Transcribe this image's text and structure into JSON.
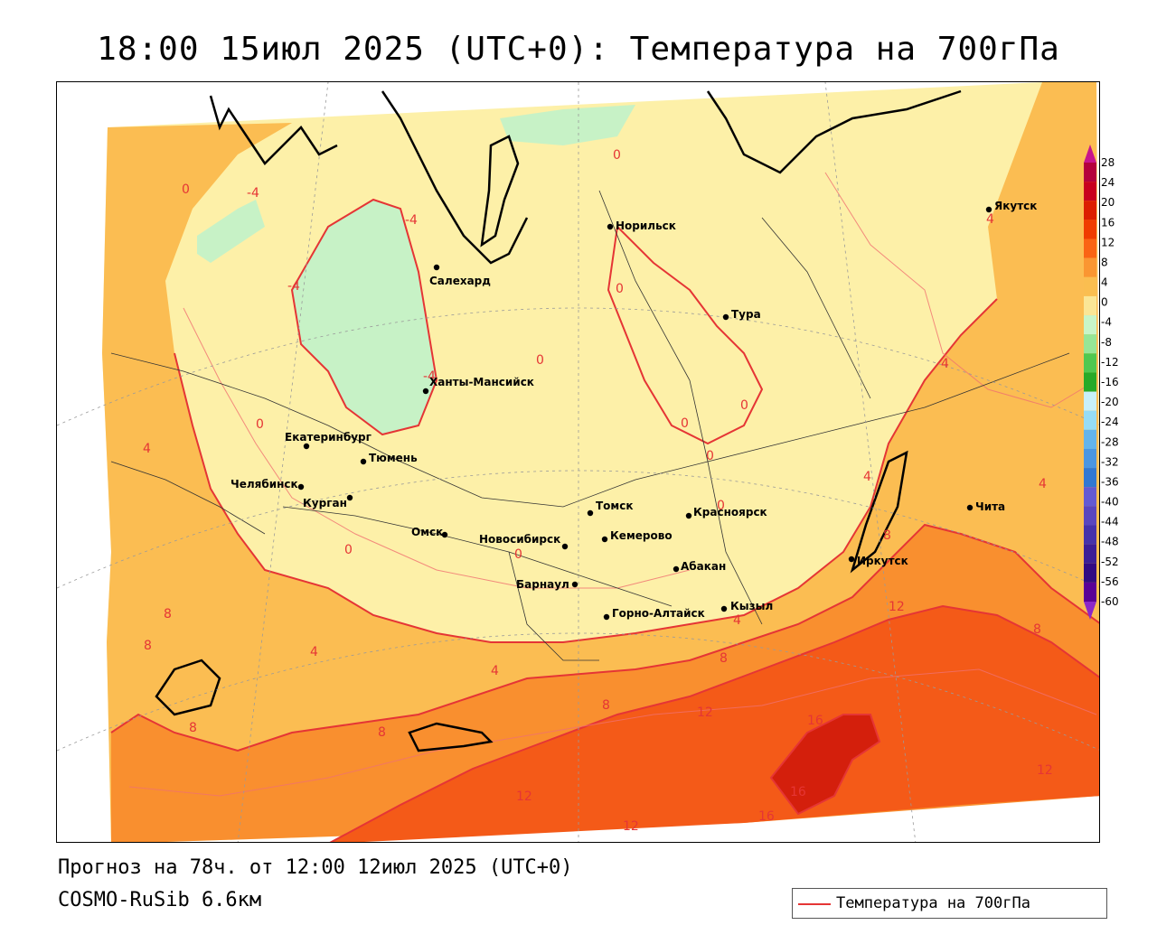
{
  "header": {
    "title": "18:00 15июл 2025 (UTC+0): Температура на 700гПа"
  },
  "footer": {
    "forecast": "Прогноз на 78ч. от 12:00 12июл 2025 (UTC+0)",
    "model": "COSMO-RuSib 6.6км"
  },
  "legend": {
    "label": "Температура на 700гПа",
    "color": "#e53535"
  },
  "colorbar": {
    "labels": [
      "28",
      "24",
      "20",
      "16",
      "12",
      "8",
      "4",
      "0",
      "-4",
      "-8",
      "-12",
      "-16",
      "-20",
      "-24",
      "-28",
      "-32",
      "-36",
      "-40",
      "-44",
      "-48",
      "-52",
      "-56",
      "-60"
    ],
    "colors": [
      "#b4003c",
      "#c8001e",
      "#dc1e00",
      "#f03c00",
      "#fa6414",
      "#fa9632",
      "#fabe50",
      "#fae696",
      "#c8f5c8",
      "#96e696",
      "#50c850",
      "#28aa28",
      "#c8f0fa",
      "#96dcf5",
      "#64b4eb",
      "#4b96e1",
      "#3278d2",
      "#645ad2",
      "#5a46be",
      "#4632aa",
      "#3c1e96",
      "#320a82",
      "#5a0096"
    ]
  },
  "cities": [
    {
      "name": "Якутск"
    },
    {
      "name": "Норильск"
    },
    {
      "name": "Салехард"
    },
    {
      "name": "Тура"
    },
    {
      "name": "Ханты-Мансийск"
    },
    {
      "name": "Екатеринбург"
    },
    {
      "name": "Тюмень"
    },
    {
      "name": "Челябинск"
    },
    {
      "name": "Курган"
    },
    {
      "name": "Томск"
    },
    {
      "name": "Красноярск"
    },
    {
      "name": "Омск"
    },
    {
      "name": "Новосибирск"
    },
    {
      "name": "Кемерово"
    },
    {
      "name": "Абакан"
    },
    {
      "name": "Барнаул"
    },
    {
      "name": "Горно-Алтайск"
    },
    {
      "name": "Кызыл"
    },
    {
      "name": "Иркутск"
    },
    {
      "name": "Чита"
    }
  ],
  "isolabels": [
    "0",
    "-4",
    "-4",
    "-4",
    "-4",
    "0",
    "0",
    "0",
    "0",
    "0",
    "0",
    "0",
    "0",
    "0",
    "0",
    "4",
    "4",
    "4",
    "4",
    "4",
    "4",
    "4",
    "4",
    "8",
    "8",
    "8",
    "8",
    "8",
    "8",
    "8",
    "8",
    "12",
    "12",
    "12",
    "12",
    "12",
    "12",
    "16",
    "16",
    "16"
  ]
}
